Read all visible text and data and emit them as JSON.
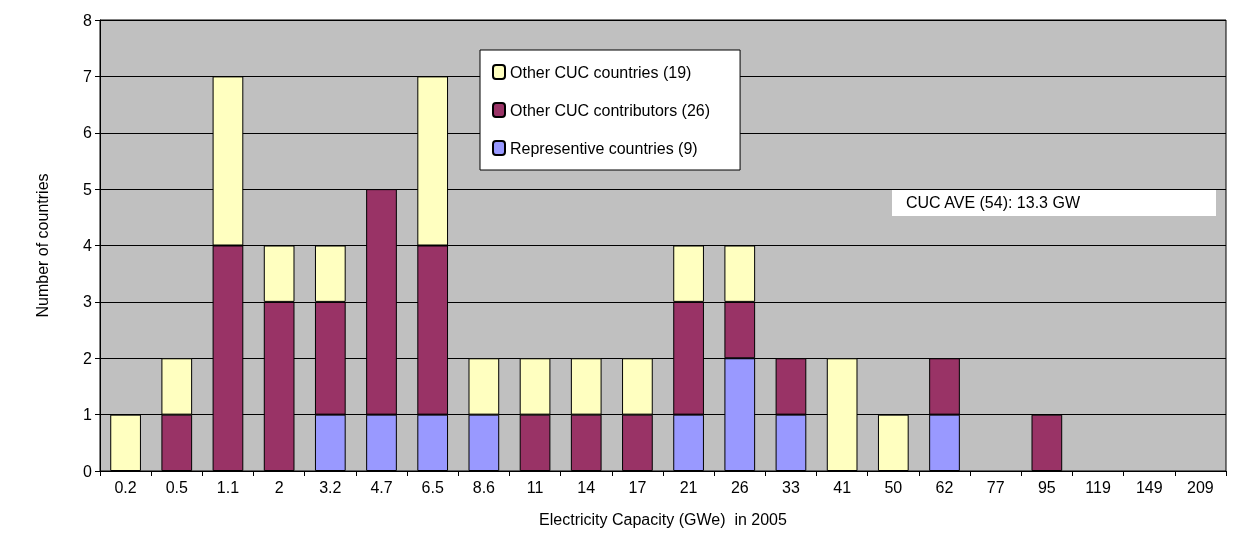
{
  "chart_data": {
    "type": "bar",
    "stacked": true,
    "xlabel": "Electricity Capacity (GWe)  in 2005",
    "ylabel": "Number of countries",
    "categories": [
      "0.2",
      "0.5",
      "1.1",
      "2",
      "3.2",
      "4.7",
      "6.5",
      "8.6",
      "11",
      "14",
      "17",
      "21",
      "26",
      "33",
      "41",
      "50",
      "62",
      "77",
      "95",
      "119",
      "149",
      "209"
    ],
    "series": [
      {
        "name": "Representive countries (9)",
        "color": "#9999ff",
        "values": [
          0,
          0,
          0,
          0,
          1,
          1,
          1,
          1,
          0,
          0,
          0,
          1,
          2,
          1,
          0,
          0,
          1,
          0,
          0,
          0,
          0,
          0
        ]
      },
      {
        "name": "Other CUC contributors (26)",
        "color": "#993366",
        "values": [
          0,
          1,
          4,
          3,
          2,
          4,
          3,
          0,
          1,
          1,
          1,
          2,
          1,
          1,
          0,
          0,
          1,
          0,
          1,
          0,
          0,
          0
        ]
      },
      {
        "name": "Other CUC countries (19)",
        "color": "#ffffc0",
        "values": [
          1,
          1,
          3,
          1,
          1,
          0,
          3,
          1,
          1,
          1,
          1,
          1,
          1,
          0,
          2,
          1,
          0,
          0,
          0,
          0,
          0,
          0
        ]
      }
    ],
    "ylim": [
      0,
      8
    ],
    "yticks": [
      0,
      1,
      2,
      3,
      4,
      5,
      6,
      7,
      8
    ],
    "grid": "y",
    "legend": "top",
    "annotations": [
      "CUC AVE (54): 13.3 GW"
    ]
  }
}
